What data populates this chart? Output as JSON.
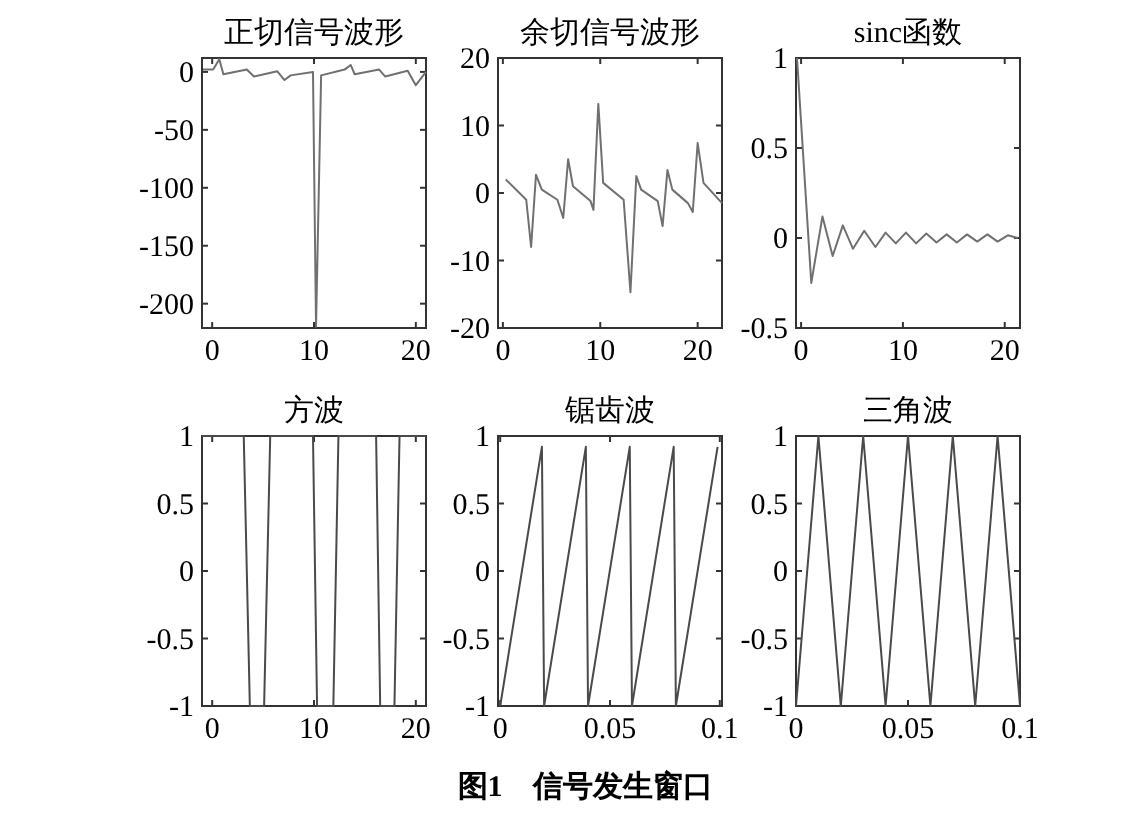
{
  "chart_data": [
    {
      "type": "line",
      "title": "正切信号波形",
      "x": [
        -0.9,
        0.1,
        0.7,
        1.1,
        3.4,
        4.1,
        6.4,
        7.1,
        7.7,
        9.9,
        10.2,
        10.7,
        13,
        13.6,
        14,
        16.4,
        17,
        19.2,
        20,
        21
      ],
      "values": [
        2,
        2,
        11,
        -2,
        2,
        -4,
        0.5,
        -7,
        -3,
        0,
        -220,
        -3,
        2,
        6,
        -2,
        2,
        -4,
        1,
        -11.5,
        0
      ],
      "color": "#707070",
      "xlim": [
        -1,
        21
      ],
      "ylim": [
        -221,
        12
      ],
      "xticks": [
        0,
        10,
        20
      ],
      "yticks": [
        -200,
        -150,
        -100,
        -50,
        0
      ]
    },
    {
      "type": "line",
      "title": "余切信号波形",
      "x": [
        0.3,
        2.4,
        2.9,
        3.4,
        4,
        5.6,
        6.2,
        6.7,
        7.2,
        9,
        9.3,
        9.8,
        10.3,
        12.4,
        13.1,
        13.7,
        14.2,
        15.9,
        16.4,
        16.9,
        17.4,
        19,
        19.5,
        20,
        20.6,
        22.5
      ],
      "values": [
        2,
        -1,
        -8,
        2.7,
        0.5,
        -1,
        -3.7,
        5,
        1,
        -1.2,
        -2.5,
        13.2,
        1.5,
        -1,
        -14.7,
        2.5,
        0.5,
        -1.2,
        -4.9,
        3.4,
        0.5,
        -1.5,
        -2.8,
        7.4,
        1.5,
        -1.5
      ],
      "color": "#707070",
      "xlim": [
        -0.5,
        22.5
      ],
      "ylim": [
        -20,
        20
      ],
      "xticks": [
        0,
        10,
        20
      ],
      "yticks": [
        -20,
        -10,
        0,
        10,
        20
      ]
    },
    {
      "type": "line",
      "title": "sinc函数",
      "x": [
        -0.4,
        1,
        2.1,
        3.1,
        4.1,
        5.1,
        6.2,
        7.3,
        8.3,
        9.3,
        10.3,
        11.3,
        12.3,
        13.3,
        14.3,
        15.3,
        16.3,
        17.3,
        18.3,
        19.3,
        20.3,
        21.3
      ],
      "values": [
        1,
        -0.25,
        0.12,
        -0.1,
        0.07,
        -0.06,
        0.04,
        -0.05,
        0.03,
        -0.03,
        0.03,
        -0.03,
        0.025,
        -0.025,
        0.02,
        -0.025,
        0.02,
        -0.02,
        0.02,
        -0.02,
        0.015,
        0
      ],
      "color": "#707070",
      "xlim": [
        -0.5,
        21.5
      ],
      "ylim": [
        -0.5,
        1
      ],
      "xticks": [
        0,
        10,
        20
      ],
      "yticks": [
        -0.5,
        0,
        0.5,
        1
      ]
    },
    {
      "type": "line",
      "title": "方波",
      "x": [
        -1,
        3.1,
        3.7,
        5.1,
        5.7,
        9.9,
        10.3,
        11.9,
        12.4,
        16.1,
        16.5,
        17.9,
        18.4,
        21
      ],
      "values": [
        1,
        1,
        -1,
        -1,
        1,
        1,
        -1,
        -1,
        1,
        1,
        -1,
        -1,
        1,
        1
      ],
      "color": "#4a4a4a",
      "xlim": [
        -1,
        21
      ],
      "ylim": [
        -1,
        1
      ],
      "xticks": [
        0,
        10,
        20
      ],
      "yticks": [
        -1,
        -0.5,
        0,
        0.5,
        1
      ]
    },
    {
      "type": "line",
      "title": "锯齿波",
      "x": [
        0,
        0.019,
        0.02,
        0.039,
        0.04,
        0.059,
        0.06,
        0.079,
        0.08,
        0.099
      ],
      "values": [
        -1,
        0.92,
        -1,
        0.92,
        -1,
        0.92,
        -1,
        0.92,
        -1,
        0.92
      ],
      "color": "#4a4a4a",
      "xlim": [
        -0.001,
        0.101
      ],
      "ylim": [
        -1,
        1
      ],
      "xticks": [
        0,
        0.05,
        0.1
      ],
      "yticks": [
        -1,
        -0.5,
        0,
        0.5,
        1
      ]
    },
    {
      "type": "line",
      "title": "三角波",
      "x": [
        0,
        0.01,
        0.02,
        0.03,
        0.04,
        0.05,
        0.06,
        0.07,
        0.08,
        0.09,
        0.1
      ],
      "values": [
        -1,
        1,
        -1,
        1,
        -1,
        1,
        -1,
        1,
        -1,
        1,
        -1
      ],
      "color": "#4a4a4a",
      "xlim": [
        0,
        0.1
      ],
      "ylim": [
        -1,
        1
      ],
      "xticks": [
        0,
        0.05,
        0.1
      ],
      "yticks": [
        -1,
        -0.5,
        0,
        0.5,
        1
      ],
      "annotations": [
        "图1　信号发生窗口"
      ]
    }
  ]
}
